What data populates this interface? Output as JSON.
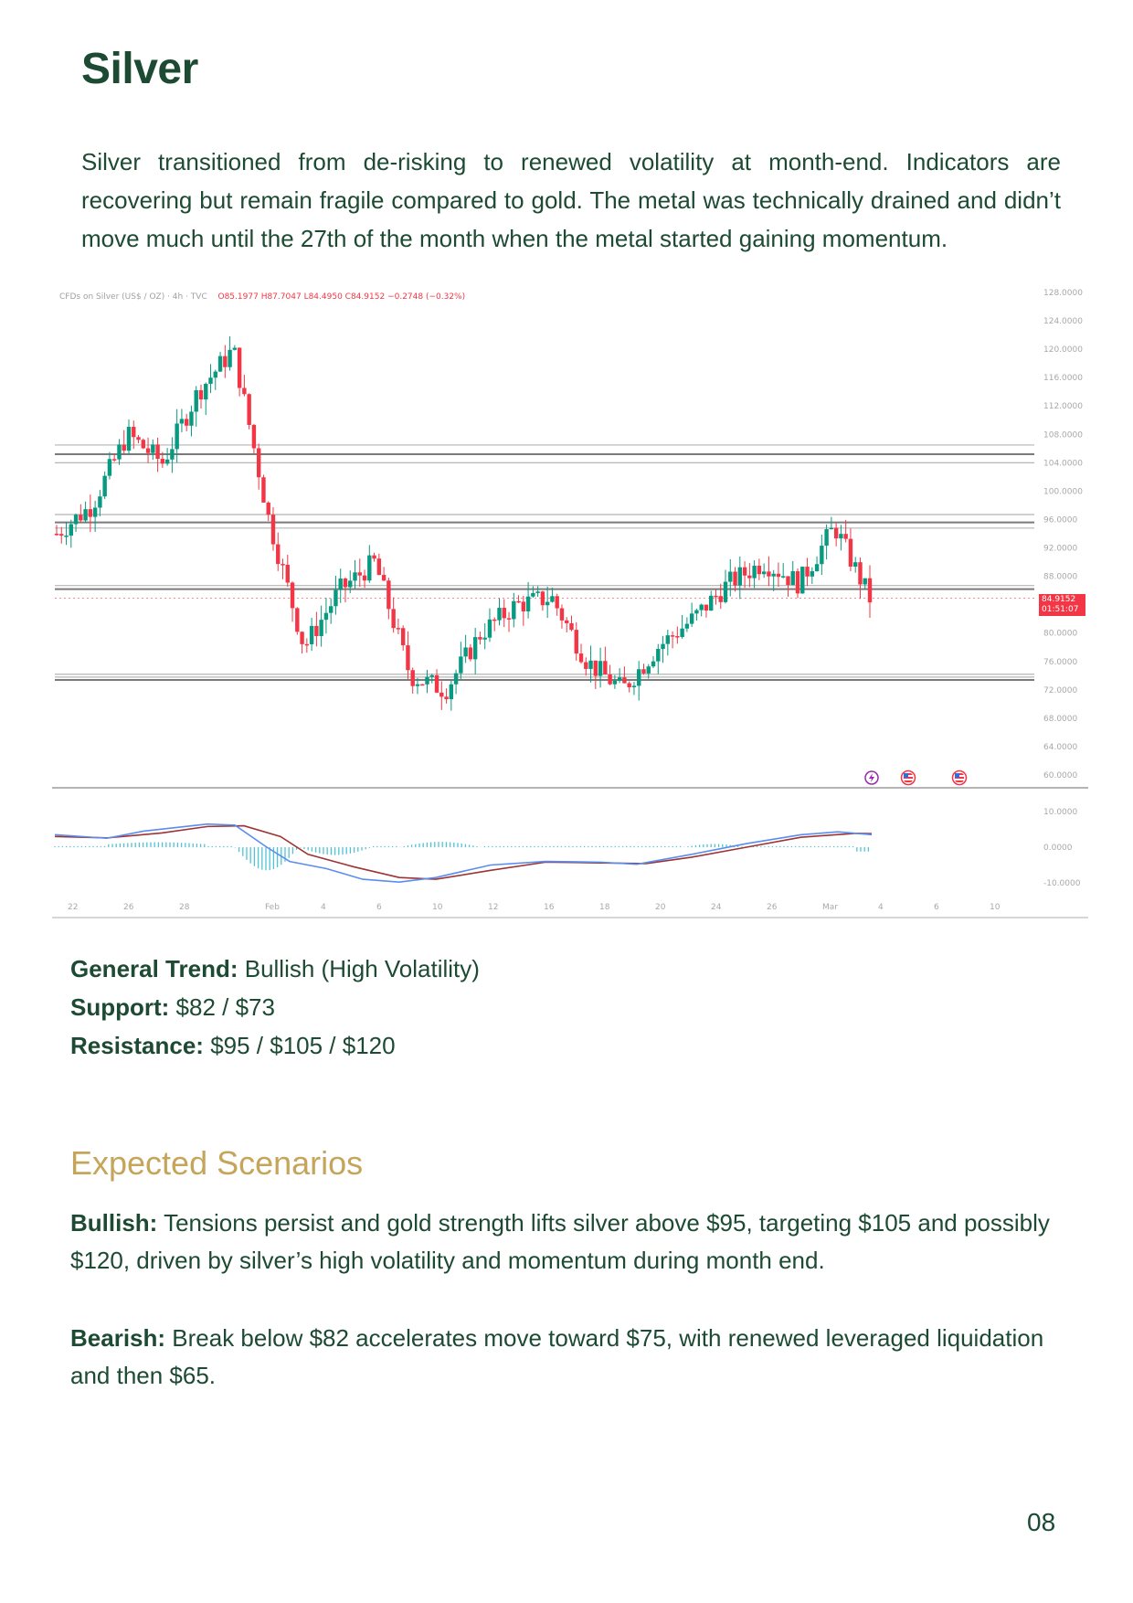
{
  "page": {
    "title": "Silver",
    "intro": "Silver transitioned from de-risking to renewed volatility at month-end. Indicators are recovering but remain fragile compared to gold. The metal was technically drained and didn’t move much until the 27th of the month when the metal started gaining momentum.",
    "page_number": "08"
  },
  "chart_legend": {
    "symbol": "CFDs on Silver (US$ / OZ) · 4h · TVC",
    "open": "O85.1977",
    "high": "H87.7047",
    "low": "L84.4950",
    "close": "C84.9152",
    "change": "−0.2748 (−0.32%)"
  },
  "price_label": {
    "price": "84.9152",
    "countdown": "01:51:07"
  },
  "levels": {
    "trend_label": "General Trend:",
    "trend_value": " Bullish (High Volatility)",
    "support_label": "Support:",
    "support_value": " $82 / $73",
    "resistance_label": "Resistance:",
    "resistance_value": " $95 / $105 / $120"
  },
  "scenarios": {
    "heading": "Expected Scenarios",
    "bullish_label": "Bullish:",
    "bullish_text": " Tensions persist and gold strength lifts silver above $95, targeting $105 and possibly $120, driven by silver’s high volatility and momentum during month end.",
    "bearish_label": "Bearish:",
    "bearish_text": " Break below $82 accelerates move toward $75, with renewed leveraged liquidation and then $65."
  },
  "colors": {
    "up": "#089981",
    "down": "#f23645",
    "macd": "#5b8def",
    "signal": "#9c3434",
    "hist": "#4fc3d6",
    "title": "#1d4a32",
    "accent": "#c4a55a"
  },
  "chart_data": {
    "type": "candlestick",
    "title": "CFDs on Silver (US$ / OZ) · 4h · TVC",
    "x_ticks": [
      "22",
      "26",
      "28",
      "Feb",
      "4",
      "6",
      "10",
      "12",
      "16",
      "18",
      "20",
      "24",
      "26",
      "Mar",
      "4",
      "6",
      "10"
    ],
    "y_ticks": [
      "128.0000",
      "124.0000",
      "120.0000",
      "116.0000",
      "112.0000",
      "108.0000",
      "104.0000",
      "100.0000",
      "96.0000",
      "92.0000",
      "88.0000",
      "80.0000",
      "76.0000",
      "72.0000",
      "68.0000",
      "64.0000",
      "60.0000"
    ],
    "ylim": [
      60,
      128
    ],
    "macd_ticks": [
      "10.0000",
      "0.0000",
      "-10.0000"
    ],
    "horizontal_levels": [
      106.5,
      105.2,
      104,
      96.7,
      95.6,
      94.8,
      86.7,
      86.2,
      74.2,
      73.8,
      73.4
    ],
    "approx_closes": [
      {
        "date": "Jan 21",
        "close": 94
      },
      {
        "date": "Jan 23",
        "close": 98
      },
      {
        "date": "Jan 26",
        "close": 108
      },
      {
        "date": "Jan 27",
        "close": 104
      },
      {
        "date": "Jan 28",
        "close": 114
      },
      {
        "date": "Jan 29",
        "close": 120
      },
      {
        "date": "Jan 30",
        "close": 96
      },
      {
        "date": "Feb 2",
        "close": 78
      },
      {
        "date": "Feb 3",
        "close": 86
      },
      {
        "date": "Feb 4",
        "close": 90
      },
      {
        "date": "Feb 5",
        "close": 74
      },
      {
        "date": "Feb 6",
        "close": 72
      },
      {
        "date": "Feb 9",
        "close": 80
      },
      {
        "date": "Feb 11",
        "close": 84
      },
      {
        "date": "Feb 12",
        "close": 85
      },
      {
        "date": "Feb 13",
        "close": 76
      },
      {
        "date": "Feb 17",
        "close": 72
      },
      {
        "date": "Feb 19",
        "close": 78
      },
      {
        "date": "Feb 20",
        "close": 82
      },
      {
        "date": "Feb 23",
        "close": 87
      },
      {
        "date": "Feb 25",
        "close": 90
      },
      {
        "date": "Feb 26",
        "close": 87
      },
      {
        "date": "Feb 27",
        "close": 95
      },
      {
        "date": "Mar 2",
        "close": 84.9152
      }
    ],
    "last_price": 84.9152,
    "indicator": "MACD"
  }
}
